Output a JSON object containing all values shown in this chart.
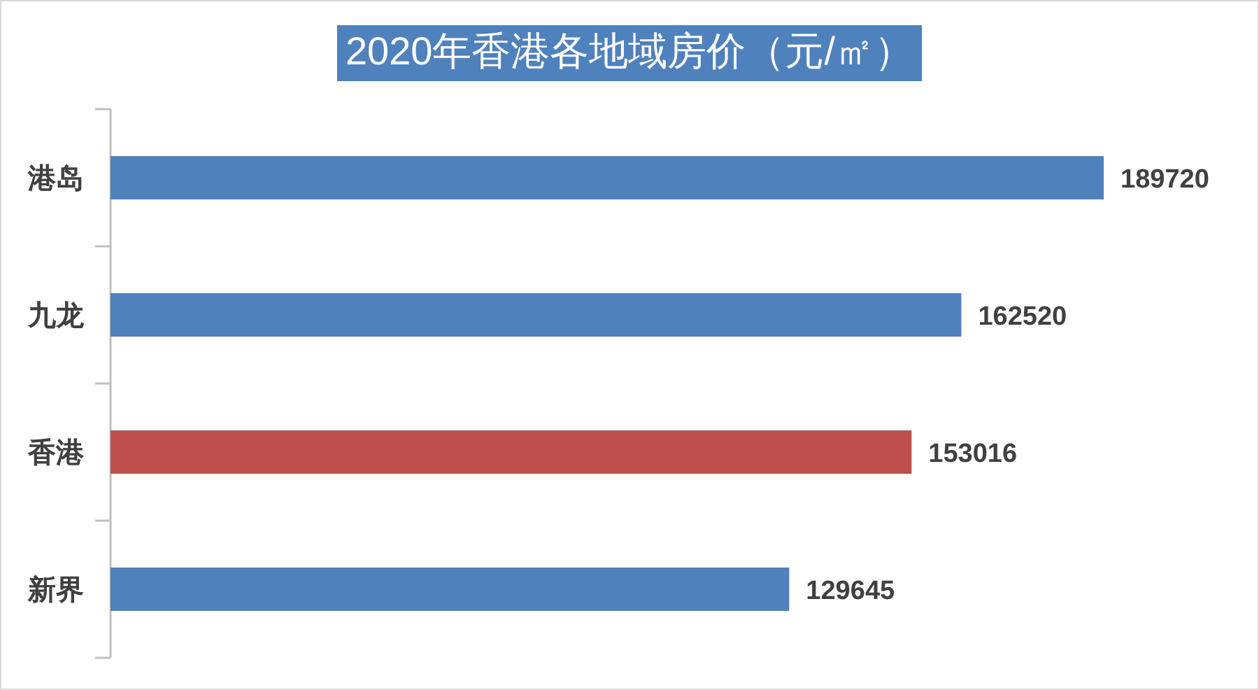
{
  "chart_data": {
    "type": "bar",
    "orientation": "horizontal",
    "title": "2020年香港各地域房价（元/㎡）",
    "categories": [
      "港岛",
      "九龙",
      "香港",
      "新界"
    ],
    "values": [
      189720,
      162520,
      153016,
      129645
    ],
    "colors": [
      "#4f81bd",
      "#4f81bd",
      "#c0504d",
      "#4f81bd"
    ],
    "data_labels": true
  }
}
